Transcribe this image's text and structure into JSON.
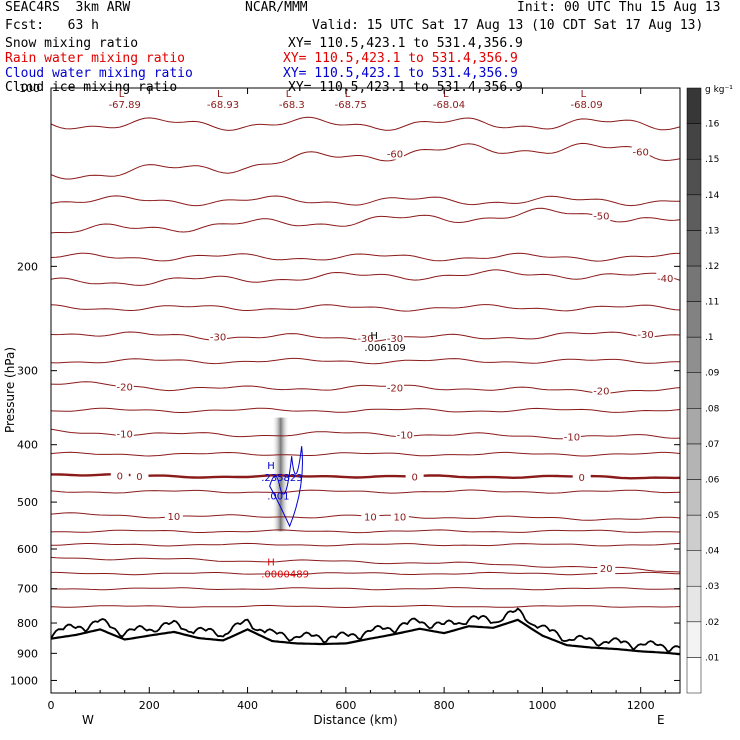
{
  "header": {
    "model": "SEAC4RS  3km ARW",
    "center": "NCAR/MMM",
    "init": "Init: 00 UTC Thu 15 Aug 13",
    "fcst": "Fcst:   63 h",
    "valid": "Valid: 15 UTC Sat 17 Aug 13 (10 CDT Sat 17 Aug 13)"
  },
  "fields": [
    {
      "name": "Snow mixing ratio",
      "color": "#000000",
      "xy": "XY= 110.5,423.1 to 531.4,356.9"
    },
    {
      "name": "Rain water mixing ratio",
      "color": "#e00000",
      "xy": "XY= 110.5,423.1 to 531.4,356.9"
    },
    {
      "name": "Cloud water mixing ratio",
      "color": "#0000d0",
      "xy": "XY= 110.5,423.1 to 531.4,356.9"
    },
    {
      "name": "Cloud ice mixing ratio",
      "color": "#000000",
      "xy": "XY= 110.5,423.1 to 531.4,356.9"
    }
  ],
  "chart_data": {
    "type": "contour",
    "xlabel": "Distance (km)",
    "ylabel": "Pressure (hPa)",
    "xlim": [
      0,
      1280
    ],
    "ylim": [
      1050,
      100
    ],
    "y_scale": "log",
    "x_ticks": [
      0,
      200,
      400,
      600,
      800,
      1000,
      1200
    ],
    "y_ticks": [
      200,
      300,
      400,
      500,
      600,
      700,
      800,
      900,
      1000
    ],
    "y_top_label": "100",
    "west_label": "W",
    "east_label": "E",
    "colorbar": {
      "unit": "g kg⁻¹",
      "ticks": [
        ".01",
        ".02",
        ".03",
        ".04",
        ".05",
        ".06",
        ".07",
        ".08",
        ".09",
        ".1",
        ".11",
        ".12",
        ".13",
        ".14",
        ".15",
        ".16"
      ]
    },
    "temperature_contours": [
      {
        "label": "-60",
        "points": [
          [
            0,
            140
          ],
          [
            200,
            138
          ],
          [
            400,
            135
          ],
          [
            600,
            130
          ],
          [
            800,
            128
          ],
          [
            1000,
            126
          ],
          [
            1200,
            128
          ],
          [
            1280,
            130
          ]
        ],
        "labels_at": [
          700,
          1200
        ]
      },
      {
        "label": "-50",
        "points": [
          [
            0,
            175
          ],
          [
            200,
            172
          ],
          [
            400,
            170
          ],
          [
            600,
            168
          ],
          [
            800,
            166
          ],
          [
            1000,
            163
          ],
          [
            1200,
            165
          ],
          [
            1280,
            168
          ]
        ],
        "labels_at": [
          1120
        ]
      },
      {
        "label": "-40",
        "points": [
          [
            0,
            213
          ],
          [
            200,
            212
          ],
          [
            400,
            210
          ],
          [
            600,
            208
          ],
          [
            800,
            207
          ],
          [
            1000,
            206
          ],
          [
            1200,
            208
          ],
          [
            1280,
            210
          ]
        ],
        "labels_at": [
          1250
        ]
      },
      {
        "label": "-30",
        "points": [
          [
            0,
            258
          ],
          [
            200,
            262
          ],
          [
            400,
            263
          ],
          [
            600,
            264
          ],
          [
            800,
            264
          ],
          [
            1000,
            262
          ],
          [
            1200,
            260
          ],
          [
            1280,
            260
          ]
        ],
        "labels_at": [
          340,
          640,
          700,
          1210
        ]
      },
      {
        "label": "-20",
        "points": [
          [
            0,
            315
          ],
          [
            200,
            320
          ],
          [
            400,
            322
          ],
          [
            600,
            320
          ],
          [
            800,
            320
          ],
          [
            1000,
            324
          ],
          [
            1200,
            324
          ],
          [
            1280,
            324
          ]
        ],
        "labels_at": [
          150,
          700,
          1120
        ]
      },
      {
        "label": "-10",
        "points": [
          [
            0,
            380
          ],
          [
            200,
            384
          ],
          [
            400,
            385
          ],
          [
            600,
            383
          ],
          [
            800,
            385
          ],
          [
            1000,
            387
          ],
          [
            1200,
            388
          ],
          [
            1280,
            388
          ]
        ],
        "labels_at": [
          150,
          720,
          1060
        ]
      },
      {
        "label": "0",
        "points": [
          [
            0,
            448
          ],
          [
            200,
            452
          ],
          [
            400,
            453
          ],
          [
            600,
            452
          ],
          [
            800,
            453
          ],
          [
            1000,
            453
          ],
          [
            1200,
            454
          ],
          [
            1280,
            454
          ]
        ],
        "labels_at": [
          140,
          180,
          740,
          1080
        ],
        "bold": true
      },
      {
        "label": "10",
        "points": [
          [
            0,
            524
          ],
          [
            200,
            528
          ],
          [
            400,
            529
          ],
          [
            600,
            528
          ],
          [
            800,
            530
          ],
          [
            1000,
            532
          ],
          [
            1200,
            534
          ],
          [
            1280,
            534
          ]
        ],
        "labels_at": [
          250,
          650,
          710
        ]
      },
      {
        "label": "20",
        "points": [
          [
            0,
            620
          ],
          [
            200,
            624
          ],
          [
            400,
            628
          ],
          [
            600,
            630
          ],
          [
            800,
            634
          ],
          [
            1000,
            640
          ],
          [
            1200,
            650
          ],
          [
            1280,
            655
          ]
        ],
        "labels_at": [
          1130
        ]
      }
    ],
    "thin_levels_hpa": [
      115,
      155,
      193,
      235,
      289,
      350,
      415,
      480,
      560,
      590,
      660,
      700,
      750
    ],
    "terrain_hpa": [
      [
        0,
        850
      ],
      [
        50,
        838
      ],
      [
        100,
        820
      ],
      [
        150,
        853
      ],
      [
        200,
        840
      ],
      [
        250,
        828
      ],
      [
        300,
        848
      ],
      [
        350,
        856
      ],
      [
        400,
        820
      ],
      [
        450,
        858
      ],
      [
        500,
        866
      ],
      [
        550,
        868
      ],
      [
        600,
        866
      ],
      [
        650,
        850
      ],
      [
        700,
        835
      ],
      [
        750,
        818
      ],
      [
        800,
        832
      ],
      [
        850,
        810
      ],
      [
        900,
        815
      ],
      [
        950,
        790
      ],
      [
        1000,
        840
      ],
      [
        1050,
        872
      ],
      [
        1100,
        880
      ],
      [
        1150,
        885
      ],
      [
        1200,
        893
      ],
      [
        1250,
        898
      ],
      [
        1280,
        903
      ]
    ],
    "extrema": [
      {
        "kind": "H",
        "value": ".006109",
        "x": 650,
        "p": 265,
        "color": "#000000"
      },
      {
        "kind": "H",
        "value": ".235823",
        "x": 440,
        "p": 440,
        "color": "#0000d0"
      },
      {
        "kind": "H",
        "value": ".0000489",
        "x": 440,
        "p": 640,
        "color": "#e00000"
      }
    ],
    "top_labels": [
      {
        "text": "-67.89",
        "x": 150
      },
      {
        "text": "-68.93",
        "x": 350
      },
      {
        "text": "-68.3",
        "x": 490
      },
      {
        "text": "-68.75",
        "x": 610
      },
      {
        "text": "-68.04",
        "x": 810
      },
      {
        "text": "-68.09",
        "x": 1090
      }
    ],
    "cloud_water_contour_label": ".001",
    "cloud_max_region": {
      "x": [
        450,
        485
      ],
      "p": [
        360,
        560
      ]
    }
  }
}
